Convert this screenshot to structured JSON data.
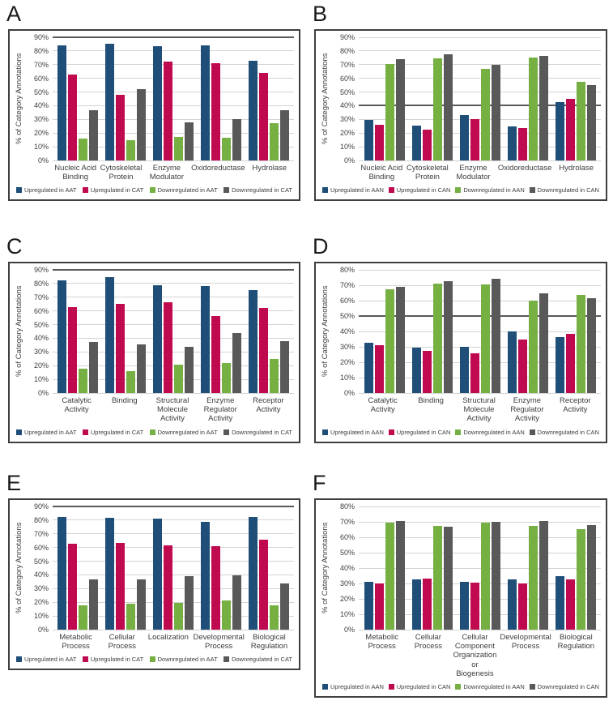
{
  "figure": {
    "background": "#ffffff",
    "text_color": "#3d3d3d",
    "panel_border_color": "#3f3f3f",
    "gridline_color": "#d4d4d4",
    "dark_gridline_color": "#595959"
  },
  "chart_data": [
    {
      "panel": "A",
      "type": "bar",
      "ylabel": "% of Category Annotations",
      "ylim": [
        0,
        90
      ],
      "ytick_step": 10,
      "ytick_suffix": "%",
      "grid": true,
      "dark_gridline_at": 90,
      "legend_position": "bottom",
      "categories": [
        "Nucleic Acid Binding",
        "Cytoskeletal Protein",
        "Enzyme Modulator",
        "Oxidoreductase",
        "Hydrolase"
      ],
      "series": [
        {
          "name": "Upregulated in AAT",
          "color": "#1f4e79",
          "values": [
            84,
            85,
            83.5,
            84,
            73
          ]
        },
        {
          "name": "Upregulated in CAT",
          "color": "#c00a50",
          "values": [
            63,
            48,
            72.5,
            71,
            64
          ]
        },
        {
          "name": "Downregulated in AAT",
          "color": "#76b043",
          "values": [
            16,
            15,
            17,
            16.5,
            27.5
          ]
        },
        {
          "name": "Downregulated in CAT",
          "color": "#595959",
          "values": [
            37,
            52,
            28,
            30,
            36.5
          ]
        }
      ]
    },
    {
      "panel": "B",
      "type": "bar",
      "ylabel": "% of Category Annotations",
      "ylim": [
        0,
        90
      ],
      "ytick_step": 10,
      "ytick_suffix": "%",
      "grid": true,
      "dark_gridline_at": 40,
      "legend_position": "bottom",
      "categories": [
        "Nucleic Acid Binding",
        "Cytoskeletal Protein",
        "Enzyme Modulator",
        "Oxidoreductase",
        "Hydrolase"
      ],
      "series": [
        {
          "name": "Upregulated in AAN",
          "color": "#1f4e79",
          "values": [
            29.5,
            25.5,
            33,
            25,
            42.5
          ]
        },
        {
          "name": "Upregulated in CAN",
          "color": "#c00a50",
          "values": [
            26,
            22.5,
            30,
            23.5,
            45
          ]
        },
        {
          "name": "Downregulated in AAN",
          "color": "#76b043",
          "values": [
            70.5,
            74.5,
            67,
            75,
            57.5
          ]
        },
        {
          "name": "Downregulated in CAN",
          "color": "#595959",
          "values": [
            74,
            77.5,
            70,
            76.5,
            55
          ]
        }
      ]
    },
    {
      "panel": "C",
      "type": "bar",
      "ylabel": "% of Category Annotations",
      "ylim": [
        0,
        90
      ],
      "ytick_step": 10,
      "ytick_suffix": "%",
      "grid": true,
      "dark_gridline_at": 90,
      "legend_position": "bottom",
      "categories": [
        "Catalytic Activity",
        "Binding",
        "Structural Molecule Activity",
        "Enzyme Regulator Activity",
        "Receptor Activity"
      ],
      "series": [
        {
          "name": "Upregulated in AAT",
          "color": "#1f4e79",
          "values": [
            82.5,
            84.5,
            79,
            78,
            75.5
          ]
        },
        {
          "name": "Upregulated in CAT",
          "color": "#c00a50",
          "values": [
            63,
            65,
            66.5,
            56,
            62
          ]
        },
        {
          "name": "Downregulated in AAT",
          "color": "#76b043",
          "values": [
            18,
            16,
            21,
            22,
            25
          ]
        },
        {
          "name": "Downregulated in CAT",
          "color": "#595959",
          "values": [
            37.5,
            35.5,
            34,
            44,
            38
          ]
        }
      ]
    },
    {
      "panel": "D",
      "type": "bar",
      "ylabel": "% of Category Annotations",
      "ylim": [
        0,
        80
      ],
      "ytick_step": 10,
      "ytick_suffix": "%",
      "grid": true,
      "dark_gridline_at": 50,
      "legend_position": "bottom",
      "categories": [
        "Catalytic Activity",
        "Binding",
        "Structural Molecule Activity",
        "Enzyme Regulator Activity",
        "Receptor Activity"
      ],
      "series": [
        {
          "name": "Upregulated in AAN",
          "color": "#1f4e79",
          "values": [
            32.5,
            29.5,
            30,
            40,
            36.5
          ]
        },
        {
          "name": "Upregulated in CAN",
          "color": "#c00a50",
          "values": [
            31,
            27.5,
            26,
            35,
            38.5
          ]
        },
        {
          "name": "Downregulated in AAN",
          "color": "#76b043",
          "values": [
            67.5,
            71,
            70.5,
            60,
            63.5
          ]
        },
        {
          "name": "Downregulated in CAN",
          "color": "#595959",
          "values": [
            69,
            72.5,
            74,
            65,
            61.5
          ]
        }
      ]
    },
    {
      "panel": "E",
      "type": "bar",
      "ylabel": "% of Category Annotations",
      "ylim": [
        0,
        90
      ],
      "ytick_step": 10,
      "ytick_suffix": "%",
      "grid": true,
      "dark_gridline_at": 90,
      "legend_position": "bottom",
      "categories": [
        "Metabolic Process",
        "Cellular Process",
        "Localization",
        "Developmental Process",
        "Biological Regulation"
      ],
      "series": [
        {
          "name": "Upregulated in AAT",
          "color": "#1f4e79",
          "values": [
            82.5,
            81.5,
            81,
            79,
            82.5
          ]
        },
        {
          "name": "Upregulated in CAT",
          "color": "#c00a50",
          "values": [
            63,
            63.5,
            61.5,
            61,
            66
          ]
        },
        {
          "name": "Downregulated in AAT",
          "color": "#76b043",
          "values": [
            18,
            19,
            19.5,
            21.5,
            17.5
          ]
        },
        {
          "name": "Downregulated in CAT",
          "color": "#595959",
          "values": [
            37,
            37,
            39,
            39.5,
            34
          ]
        }
      ]
    },
    {
      "panel": "F",
      "type": "bar",
      "ylabel": "% of Category Annotations",
      "ylim": [
        0,
        80
      ],
      "ytick_step": 10,
      "ytick_suffix": "%",
      "grid": true,
      "dark_gridline_at": null,
      "legend_position": "bottom",
      "categories": [
        "Metabolic Process",
        "Cellular Process",
        "Cellular Component Organization or Biogenesis",
        "Developmental Process",
        "Biological Regulation"
      ],
      "series": [
        {
          "name": "Upregulated in AAN",
          "color": "#1f4e79",
          "values": [
            31,
            32.5,
            31,
            32.5,
            35
          ]
        },
        {
          "name": "Upregulated in CAN",
          "color": "#c00a50",
          "values": [
            30,
            33,
            30.5,
            30,
            32.5
          ]
        },
        {
          "name": "Downregulated in AAN",
          "color": "#76b043",
          "values": [
            69.5,
            67.5,
            69.5,
            67.5,
            65.5
          ]
        },
        {
          "name": "Downregulated in CAN",
          "color": "#595959",
          "values": [
            70.5,
            67,
            70,
            70.5,
            68
          ]
        }
      ]
    }
  ]
}
